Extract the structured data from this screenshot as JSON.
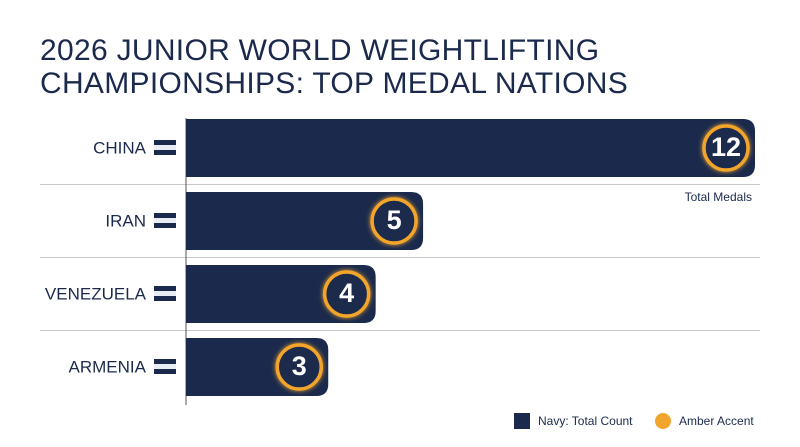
{
  "chart_data": {
    "type": "bar",
    "orientation": "horizontal",
    "title": "2026 JUNIOR WORLD WEIGHTLIFTING CHAMPIONSHIPS: TOP MEDAL NATIONS",
    "categories": [
      "CHINA",
      "IRAN",
      "VENEZUELA",
      "ARMENIA"
    ],
    "series": [
      {
        "name": "Navy: Total Count",
        "color": "#1b2a4c",
        "values": [
          12,
          5,
          4,
          3
        ]
      }
    ],
    "accent": {
      "name": "Amber Accent",
      "color": "#f2a52c"
    },
    "annotation": "Total Medals"
  }
}
